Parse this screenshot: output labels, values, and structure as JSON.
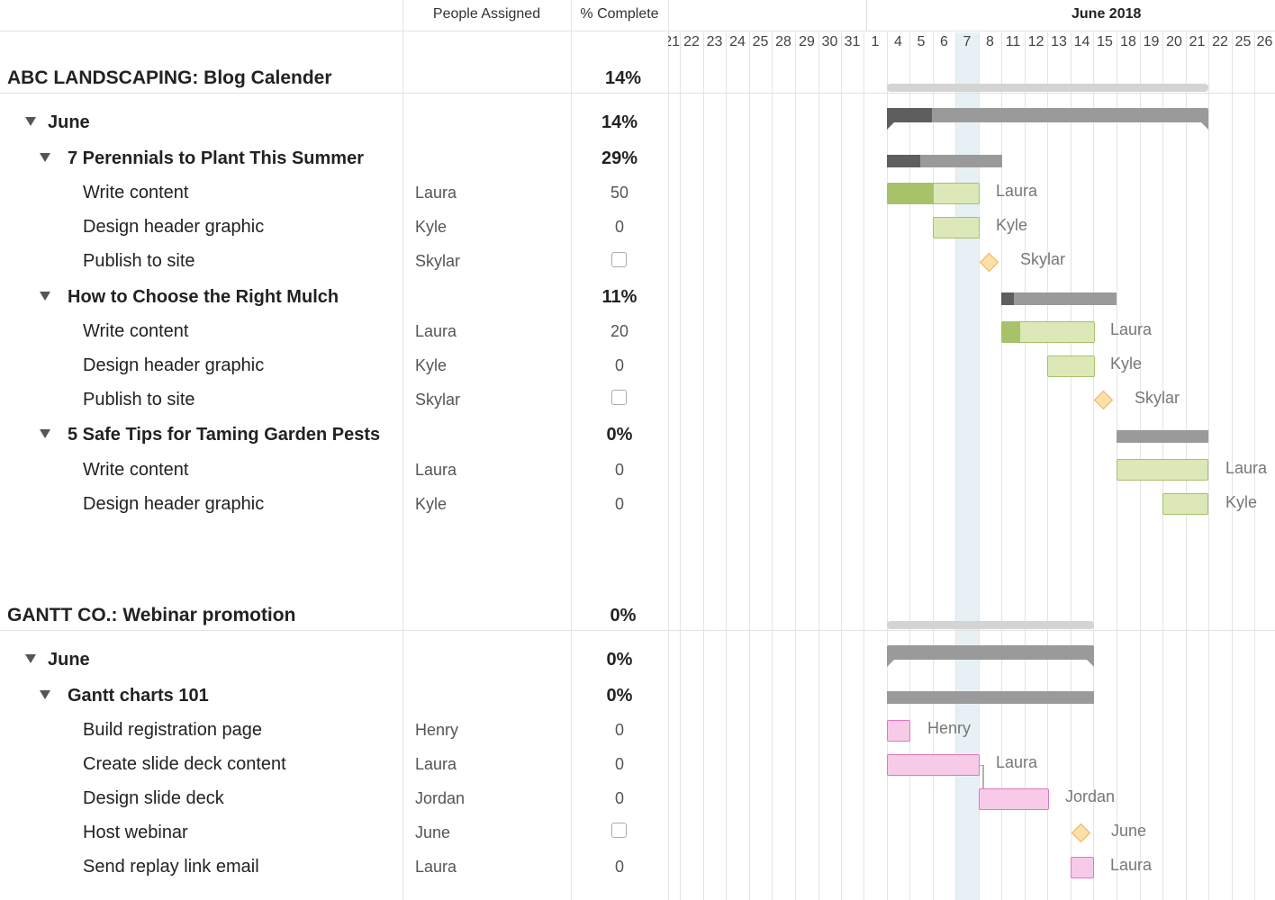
{
  "header": {
    "people_col": "People Assigned",
    "pct_col": "% Complete",
    "month_label": "June 2018",
    "days": [
      "21",
      "22",
      "23",
      "24",
      "25",
      "28",
      "29",
      "30",
      "31",
      "1",
      "4",
      "5",
      "6",
      "7",
      "8",
      "11",
      "12",
      "13",
      "14",
      "15",
      "18",
      "19",
      "20",
      "21",
      "22",
      "25",
      "26"
    ]
  },
  "projects": [
    {
      "title": "ABC LANDSCAPING: Blog Calender",
      "pct": "14%",
      "groups": [
        {
          "title": "June",
          "pct": "14%",
          "subgroups": [
            {
              "title": "7 Perennials to Plant This Summer",
              "pct": "29%",
              "tasks": [
                {
                  "name": "Write content",
                  "person": "Laura",
                  "pct": "50"
                },
                {
                  "name": "Design header graphic",
                  "person": "Kyle",
                  "pct": "0"
                },
                {
                  "name": "Publish to site",
                  "person": "Skylar",
                  "pct": ""
                }
              ]
            },
            {
              "title": "How to Choose the Right Mulch",
              "pct": "11%",
              "tasks": [
                {
                  "name": "Write content",
                  "person": "Laura",
                  "pct": "20"
                },
                {
                  "name": "Design header graphic",
                  "person": "Kyle",
                  "pct": "0"
                },
                {
                  "name": "Publish to site",
                  "person": "Skylar",
                  "pct": ""
                }
              ]
            },
            {
              "title": "5 Safe Tips for Taming Garden Pests",
              "pct": "0%",
              "tasks": [
                {
                  "name": "Write content",
                  "person": "Laura",
                  "pct": "0"
                },
                {
                  "name": "Design header graphic",
                  "person": "Kyle",
                  "pct": "0"
                }
              ]
            }
          ]
        }
      ]
    },
    {
      "title": "GANTT CO.: Webinar promotion",
      "pct": "0%",
      "groups": [
        {
          "title": "June",
          "pct": "0%",
          "subgroups": [
            {
              "title": "Gantt charts 101",
              "pct": "0%",
              "tasks": [
                {
                  "name": "Build registration page",
                  "person": "Henry",
                  "pct": "0"
                },
                {
                  "name": "Create slide deck content",
                  "person": "Laura",
                  "pct": "0"
                },
                {
                  "name": "Design slide deck",
                  "person": "Jordan",
                  "pct": "0"
                },
                {
                  "name": "Host webinar",
                  "person": "June",
                  "pct": ""
                },
                {
                  "name": "Send replay link email",
                  "person": "Laura",
                  "pct": "0"
                }
              ]
            }
          ]
        }
      ]
    }
  ],
  "colors": {
    "task_bar_green": "#dce8b8",
    "task_bar_pink": "#f7cbe8",
    "milestone": "#fde0a8",
    "today_column": "#e7f1f5"
  }
}
